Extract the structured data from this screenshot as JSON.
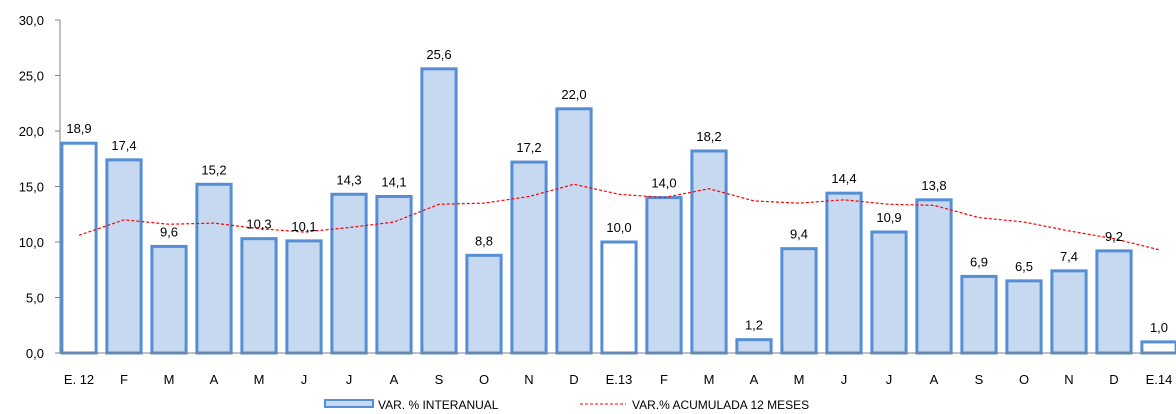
{
  "chart_data": {
    "type": "bar",
    "categories": [
      "E. 12",
      "F",
      "M",
      "A",
      "M",
      "J",
      "J",
      "A",
      "S",
      "O",
      "N",
      "D",
      "E.13",
      "F",
      "M",
      "A",
      "M",
      "J",
      "J",
      "A",
      "S",
      "O",
      "N",
      "D",
      "E.14"
    ],
    "series": [
      {
        "name": "VAR. % INTERANUAL",
        "type": "bar",
        "values": [
          18.9,
          17.4,
          9.6,
          15.2,
          10.3,
          10.1,
          14.3,
          14.1,
          25.6,
          8.8,
          17.2,
          22.0,
          10.0,
          14.0,
          18.2,
          1.2,
          9.4,
          14.4,
          10.9,
          13.8,
          6.9,
          6.5,
          7.4,
          9.2,
          1.0
        ],
        "labels": [
          "18,9",
          "17,4",
          "9,6",
          "15,2",
          "10,3",
          "10,1",
          "14,3",
          "14,1",
          "25,6",
          "8,8",
          "17,2",
          "22,0",
          "10,0",
          "14,0",
          "18,2",
          "1,2",
          "9,4",
          "14,4",
          "10,9",
          "13,8",
          "6,9",
          "6,5",
          "7,4",
          "9,2",
          "1,0"
        ],
        "highlight_indices": [
          0,
          12,
          24
        ]
      },
      {
        "name": "VAR.% ACUMULADA 12 MESES",
        "type": "line",
        "values": [
          10.6,
          12.0,
          11.6,
          11.7,
          11.2,
          10.9,
          11.3,
          11.8,
          13.4,
          13.5,
          14.1,
          15.2,
          14.3,
          14.0,
          14.8,
          13.7,
          13.5,
          13.8,
          13.4,
          13.3,
          12.2,
          11.8,
          11.0,
          10.3,
          9.3
        ]
      }
    ],
    "y_ticks": [
      "0,0",
      "5,0",
      "10,0",
      "15,0",
      "20,0",
      "25,0",
      "30,0"
    ],
    "ylim": [
      0,
      30
    ],
    "grid": false,
    "legend": "bottom-center",
    "colors": {
      "bar_fill": "#c6d9f1",
      "bar_stroke": "#558ed5",
      "highlight_fill": "#ffffff",
      "line": "#ff0000",
      "axis": "#808080"
    }
  }
}
